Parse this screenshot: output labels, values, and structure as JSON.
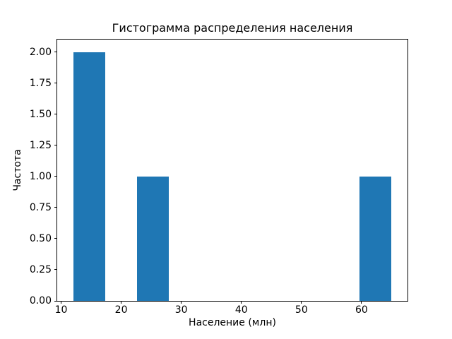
{
  "chart_data": {
    "type": "bar",
    "subtype": "histogram",
    "title": "Гистограмма распределения населения",
    "xlabel": "Население (млн)",
    "ylabel": "Частота",
    "bar_color": "#1f77b4",
    "text_color": "#000000",
    "background_color": "#ffffff",
    "grid": false,
    "legend": null,
    "xlim": [
      9.35,
      67.65
    ],
    "ylim": [
      0,
      2.1
    ],
    "xticks": [
      10,
      20,
      30,
      40,
      50,
      60
    ],
    "xtick_labels": [
      "10",
      "20",
      "30",
      "40",
      "50",
      "60"
    ],
    "yticks": [
      0.0,
      0.25,
      0.5,
      0.75,
      1.0,
      1.25,
      1.5,
      1.75,
      2.0
    ],
    "ytick_labels": [
      "0.00",
      "0.25",
      "0.50",
      "0.75",
      "1.00",
      "1.25",
      "1.50",
      "1.75",
      "2.00"
    ],
    "bin_width": 5.3,
    "bars": [
      {
        "x0": 12.0,
        "x1": 17.3,
        "count": 2
      },
      {
        "x0": 22.6,
        "x1": 27.9,
        "count": 1
      },
      {
        "x0": 59.7,
        "x1": 65.0,
        "count": 1
      }
    ]
  }
}
